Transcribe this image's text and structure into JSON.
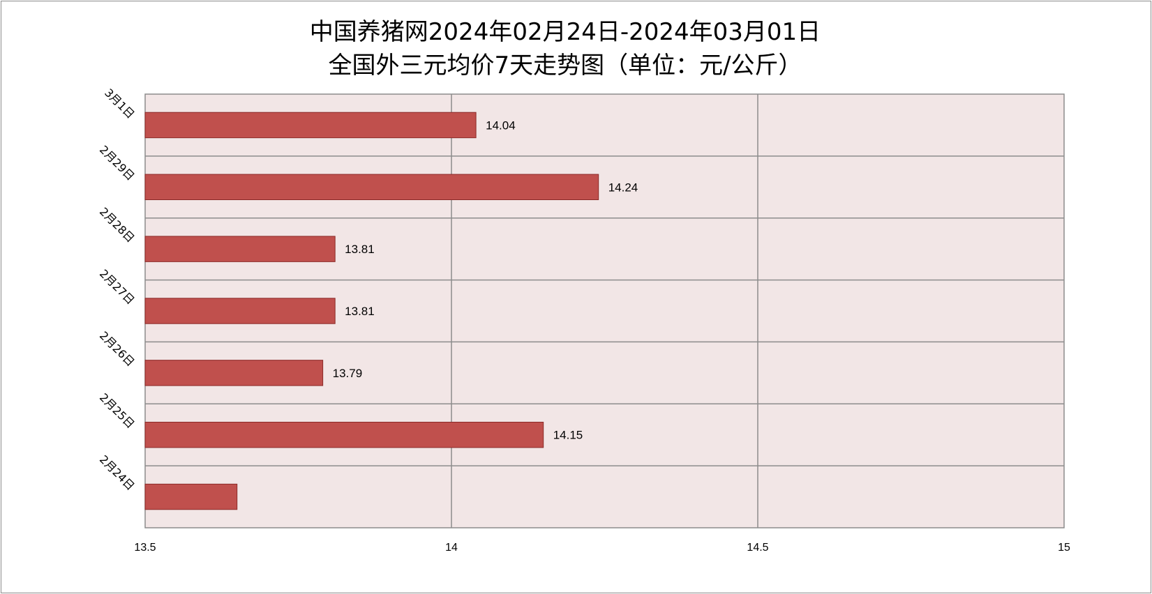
{
  "chart_data": {
    "type": "bar",
    "orientation": "horizontal",
    "title_line1": "中国养猪网2024年02月24日-2024年03月01日",
    "title_line2": "全国外三元均价7天走势图（单位：元/公斤）",
    "categories": [
      "3月1日",
      "2月29日",
      "2月28日",
      "2月27日",
      "2月26日",
      "2月25日",
      "2月24日"
    ],
    "values": [
      14.04,
      14.24,
      13.81,
      13.81,
      13.79,
      14.15,
      13.65
    ],
    "data_labels": [
      "14.04",
      "14.24",
      "13.81",
      "13.81",
      "13.79",
      "14.15",
      ""
    ],
    "x_ticks": [
      "13.5",
      "14",
      "14.5",
      "15"
    ],
    "xlim": [
      13.5,
      15
    ],
    "grid": true,
    "legend": "none",
    "colors": {
      "bar_fill": "#c0504d",
      "bar_stroke": "#8b2a28",
      "plot_bg": "#f2e6e6",
      "grid": "#8c8c8c"
    }
  }
}
